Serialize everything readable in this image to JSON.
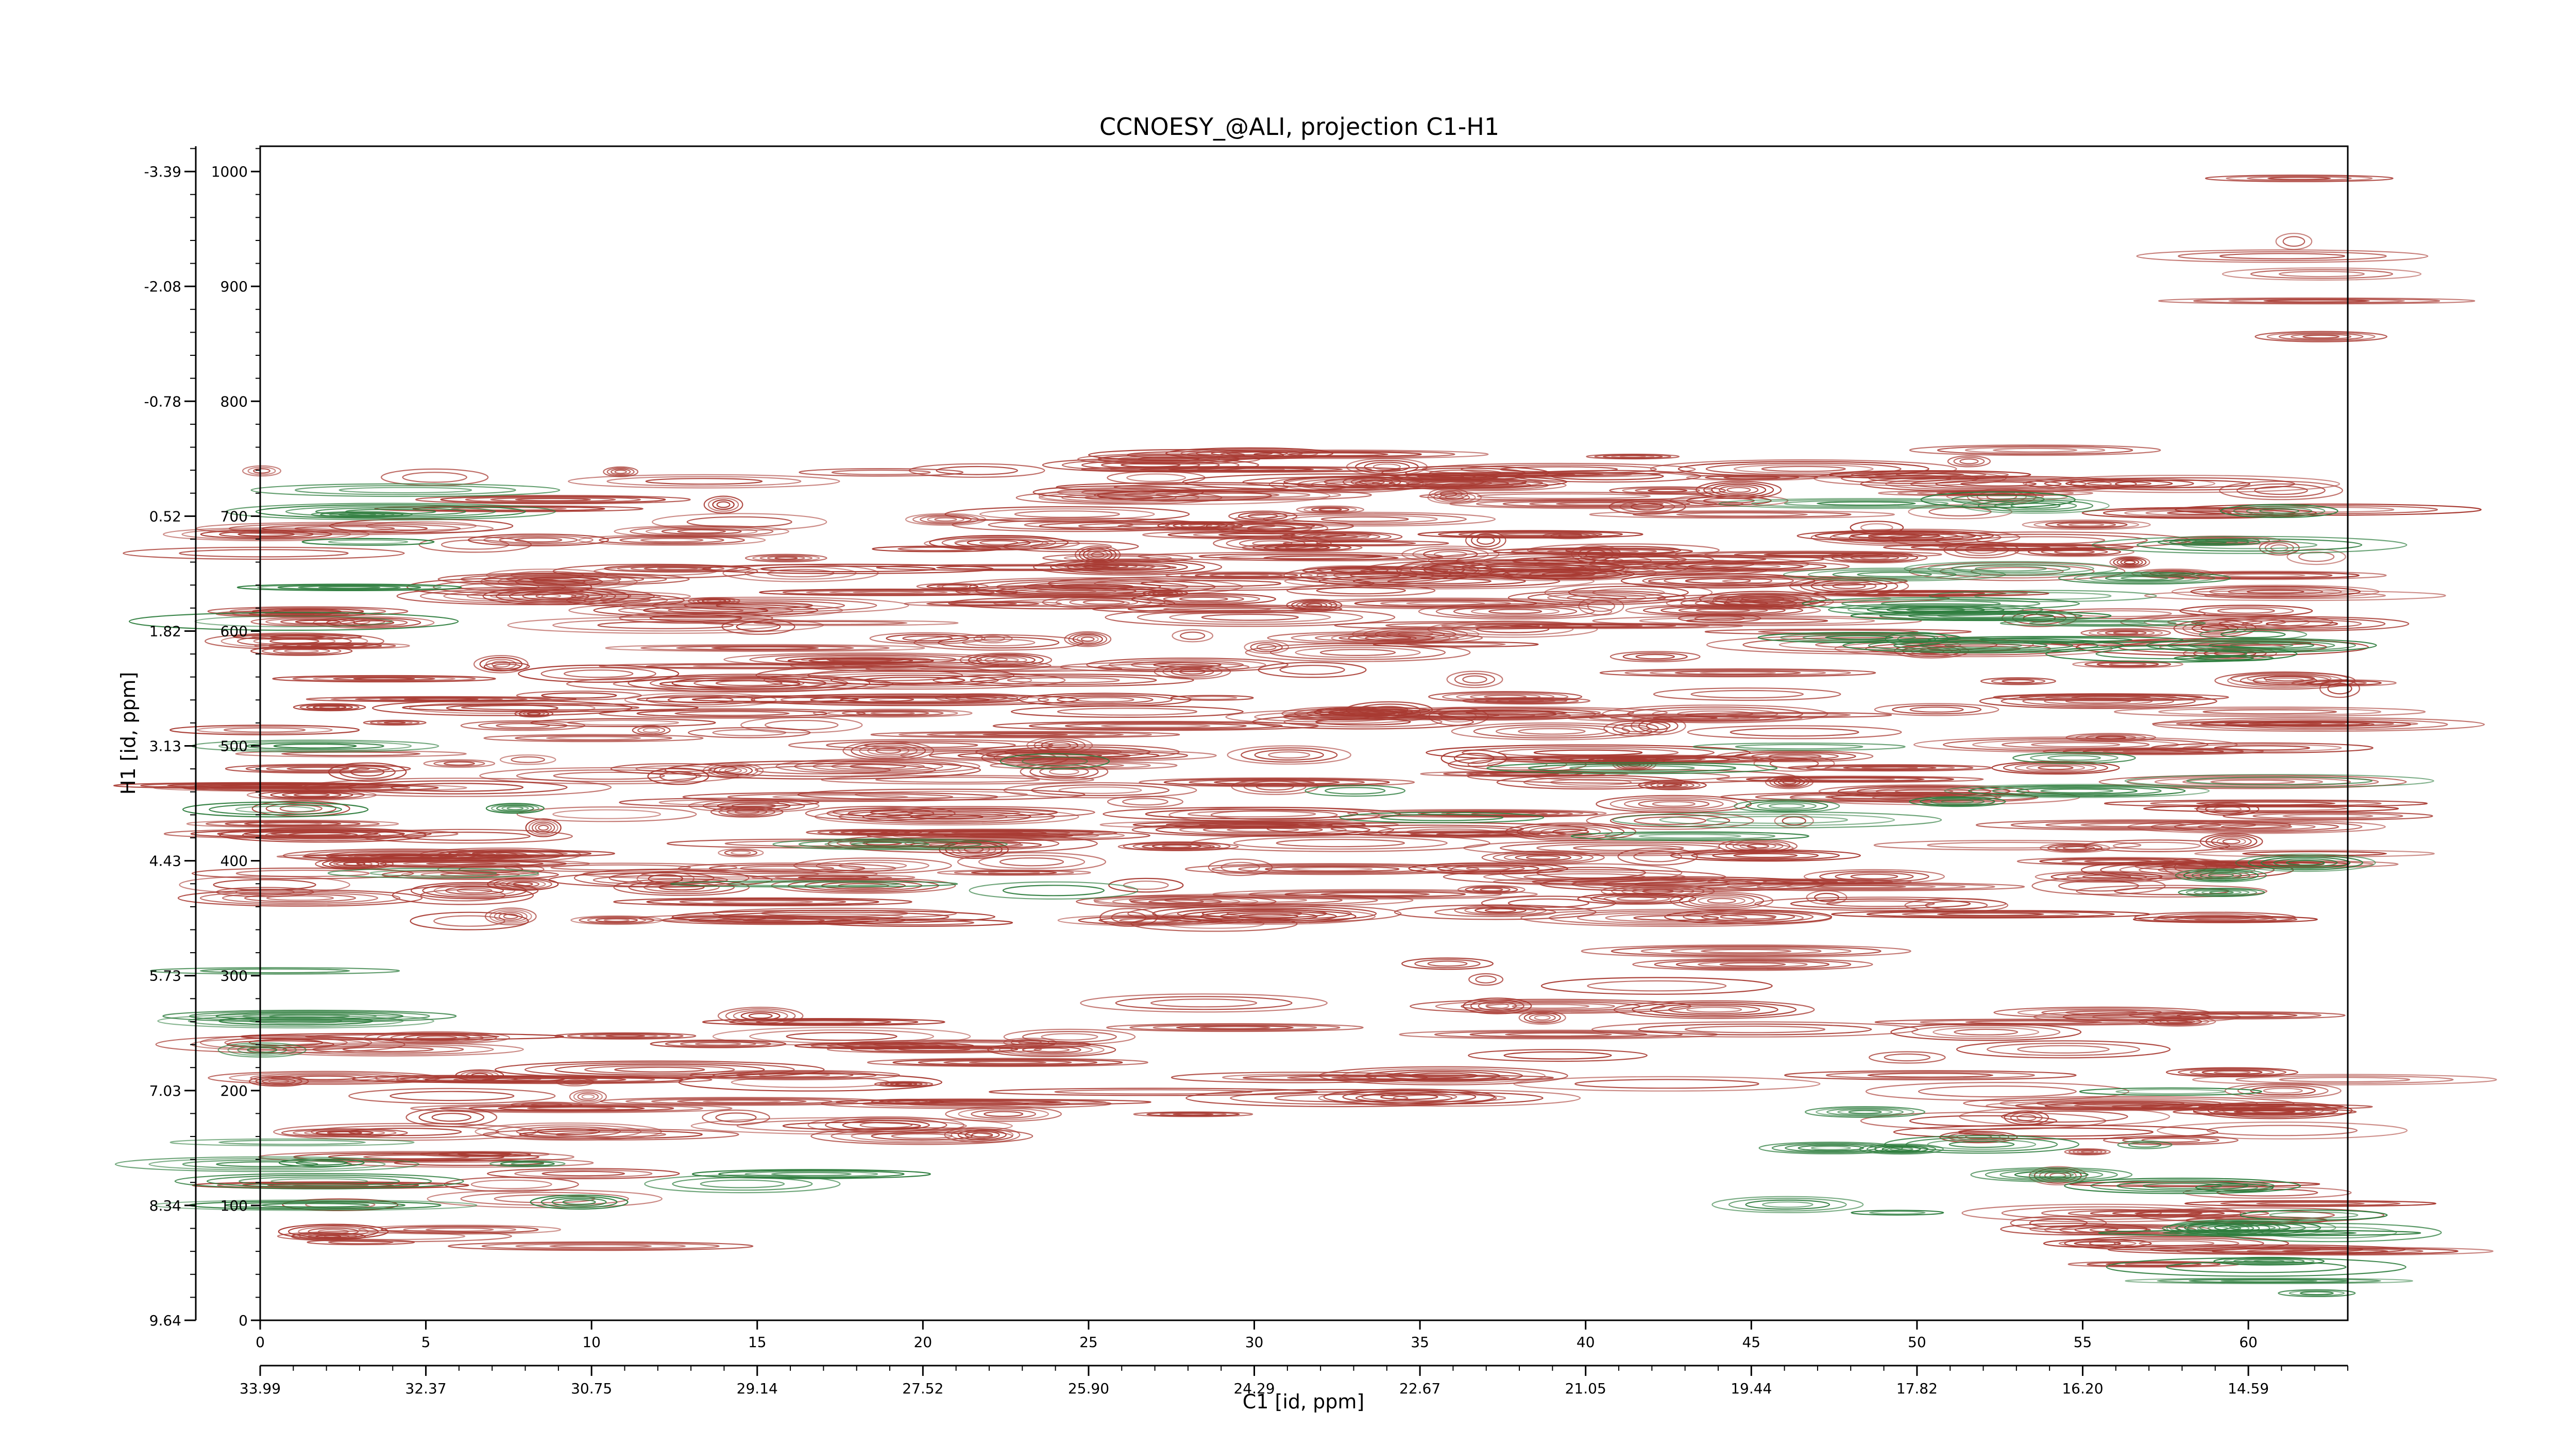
{
  "chart_data": {
    "type": "contour",
    "title": "CCNOESY_@ALI, projection C1-H1",
    "xlabel": "C1 [id, ppm]",
    "ylabel": "H1 [id, ppm]",
    "xlim": [
      0,
      63
    ],
    "ylim": [
      0,
      1022
    ],
    "x_index_ticks": [
      0,
      5,
      10,
      15,
      20,
      25,
      30,
      35,
      40,
      45,
      50,
      55,
      60
    ],
    "x_ppm_ticks": [
      "33.99",
      "32.37",
      "30.75",
      "29.14",
      "27.52",
      "25.90",
      "24.29",
      "22.67",
      "21.05",
      "19.44",
      "17.82",
      "16.20",
      "14.59"
    ],
    "y_index_ticks": [
      0,
      100,
      200,
      300,
      400,
      500,
      600,
      700,
      800,
      900,
      1000
    ],
    "y_ppm_ticks": [
      "9.64",
      "8.34",
      "7.03",
      "5.73",
      "4.43",
      "3.13",
      "1.82",
      "0.52",
      "-0.78",
      "-2.08",
      "-3.39"
    ],
    "colors": {
      "positive": "#a83a32",
      "negative": "#2e7d3e",
      "frame": "#000000"
    },
    "regions": [
      {
        "sign": "positive",
        "x": [
          0,
          63
        ],
        "y": [
          345,
          620
        ],
        "density": 1.0
      },
      {
        "sign": "positive",
        "x": [
          0,
          50
        ],
        "y": [
          620,
          740
        ],
        "density": 0.8
      },
      {
        "sign": "positive",
        "x": [
          24,
          63
        ],
        "y": [
          620,
          760
        ],
        "density": 0.9
      },
      {
        "sign": "positive",
        "x": [
          0,
          27
        ],
        "y": [
          160,
          250
        ],
        "density": 0.8
      },
      {
        "sign": "positive",
        "x": [
          20,
          40
        ],
        "y": [
          170,
          215
        ],
        "density": 0.6
      },
      {
        "sign": "positive",
        "x": [
          51,
          63
        ],
        "y": [
          40,
          270
        ],
        "density": 0.8
      },
      {
        "sign": "positive",
        "x": [
          0,
          12
        ],
        "y": [
          60,
          180
        ],
        "density": 0.6
      },
      {
        "sign": "positive",
        "x": [
          10,
          30
        ],
        "y": [
          230,
          290
        ],
        "density": 0.4
      },
      {
        "sign": "positive",
        "x": [
          35,
          51
        ],
        "y": [
          200,
          330
        ],
        "density": 0.4
      },
      {
        "sign": "positive",
        "x": [
          61,
          63
        ],
        "y": [
          850,
          1010
        ],
        "density": 0.5
      },
      {
        "sign": "negative",
        "x": [
          1,
          5
        ],
        "y": [
          600,
          730
        ],
        "density": 0.6
      },
      {
        "sign": "negative",
        "x": [
          0,
          2
        ],
        "y": [
          40,
          330
        ],
        "density": 0.5
      },
      {
        "sign": "negative",
        "x": [
          0,
          18
        ],
        "y": [
          100,
          150
        ],
        "density": 0.4
      },
      {
        "sign": "negative",
        "x": [
          46,
          63
        ],
        "y": [
          80,
          200
        ],
        "density": 0.4
      },
      {
        "sign": "negative",
        "x": [
          48,
          63
        ],
        "y": [
          560,
          720
        ],
        "density": 0.5
      },
      {
        "sign": "negative",
        "x": [
          0,
          63
        ],
        "y": [
          370,
          500
        ],
        "density": 0.15
      },
      {
        "sign": "negative",
        "x": [
          60,
          63
        ],
        "y": [
          0,
          80
        ],
        "density": 0.5
      }
    ]
  }
}
